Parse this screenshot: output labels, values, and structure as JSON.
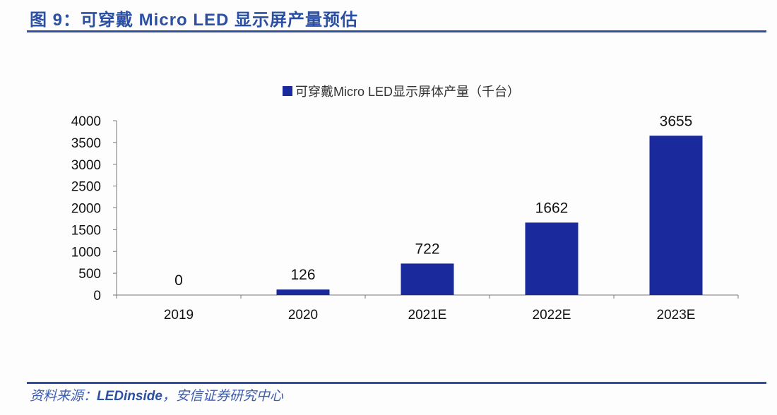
{
  "title": "图 9：可穿戴 Micro LED 显示屏产量预估",
  "source_prefix": "资料来源：",
  "source_main": "LEDinside",
  "source_suffix": "，安信证券研究中心",
  "chart_data": {
    "type": "bar",
    "categories": [
      "2019",
      "2020",
      "2021E",
      "2022E",
      "2023E"
    ],
    "series": [
      {
        "name": "可穿戴Micro LED显示屏体产量（千台）",
        "values": [
          0,
          126,
          722,
          1662,
          3655
        ]
      }
    ],
    "data_labels": [
      "0",
      "126",
      "722",
      "1662",
      "3655"
    ],
    "ylim": [
      0,
      4000
    ],
    "yticks": [
      0,
      500,
      1000,
      1500,
      2000,
      2500,
      3000,
      3500,
      4000
    ],
    "legend_position": "top",
    "grid": false,
    "bar_color": "#1a2a9c",
    "xlabel": "",
    "ylabel": ""
  }
}
